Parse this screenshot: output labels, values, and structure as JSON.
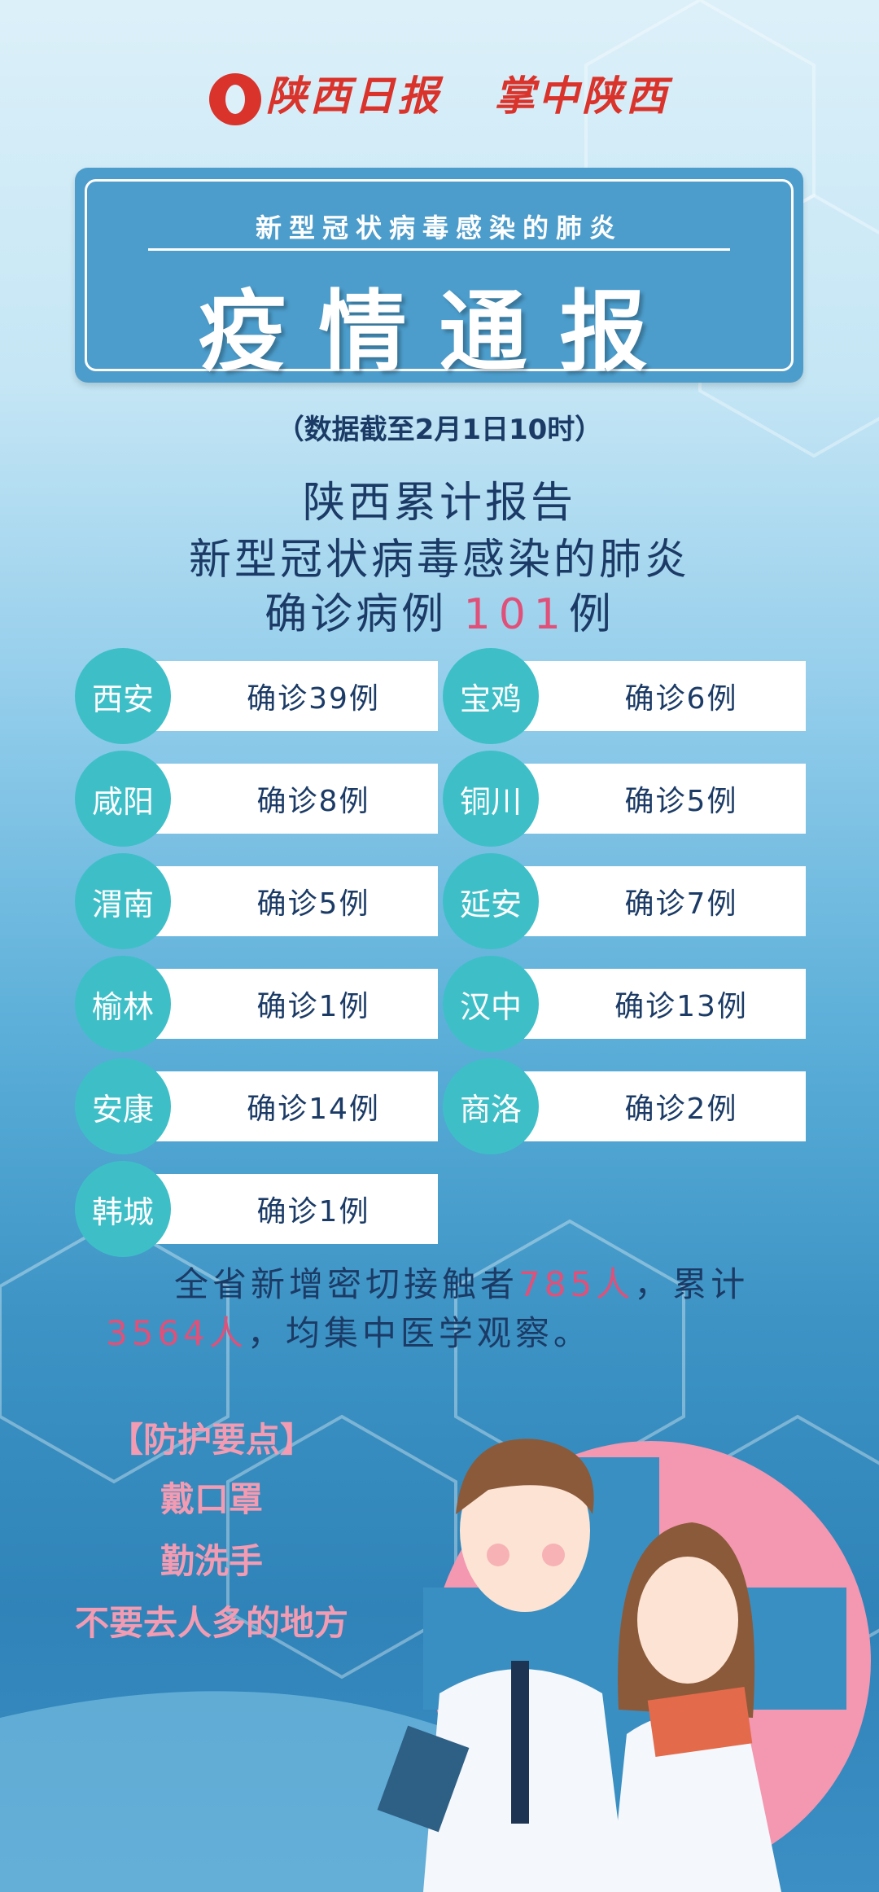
{
  "header": {
    "logo_text": "陕西日报",
    "app_name": "掌中陕西"
  },
  "title": {
    "subtitle": "新型冠状病毒感染的肺炎",
    "main": "疫情通报"
  },
  "date_note": "（数据截至2月1日10时）",
  "summary": {
    "line1": "陕西累计报告",
    "line2": "新型冠状病毒感染的肺炎",
    "line3_prefix": "确诊病例",
    "total": "101",
    "line3_suffix": "例"
  },
  "cities": [
    {
      "name": "西安",
      "count": "确诊39例"
    },
    {
      "name": "宝鸡",
      "count": "确诊6例"
    },
    {
      "name": "咸阳",
      "count": "确诊8例"
    },
    {
      "name": "铜川",
      "count": "确诊5例"
    },
    {
      "name": "渭南",
      "count": "确诊5例"
    },
    {
      "name": "延安",
      "count": "确诊7例"
    },
    {
      "name": "榆林",
      "count": "确诊1例"
    },
    {
      "name": "汉中",
      "count": "确诊13例"
    },
    {
      "name": "安康",
      "count": "确诊14例"
    },
    {
      "name": "商洛",
      "count": "确诊2例"
    },
    {
      "name": "韩城",
      "count": "确诊1例"
    }
  ],
  "contacts": {
    "prefix": "全省新增密切接触者",
    "new": "785人",
    "mid": "，累计",
    "total": "3564人",
    "suffix": "，均集中医学观察。"
  },
  "tips": {
    "title": "【防护要点】",
    "items": [
      "戴口罩",
      "勤洗手",
      "不要去人多的地方"
    ]
  },
  "colors": {
    "accent_pink": "#e05079",
    "teal": "#3ebfc8",
    "title_box": "#4c9dcc",
    "text": "#1b3b66"
  }
}
